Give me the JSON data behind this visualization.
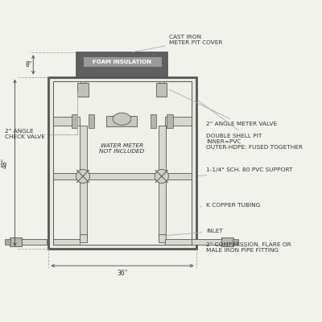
{
  "bg_color": "#f2f2ed",
  "line_color": "#aaaaaa",
  "dark_color": "#555555",
  "body_fill": "#e8e8e0",
  "inner_fill": "#f0f0ea",
  "pipe_fill": "#d8d8d0",
  "cover_fill": "#606060",
  "foam_fill": "#999999",
  "fitting_fill": "#c0c0b8",
  "text_color": "#333333",
  "labels": {
    "cast_iron": "CAST IRON\nMETER PIT COVER",
    "foam": "FOAM INSULATION",
    "check_valve": "2\" ANGLE\nCHECK VALVE",
    "meter_valve": "2\" ANGLE METER VALVE",
    "double_shell": "DOUBLE SHELL PIT\nINNER=PVC\nOUTER-HDPE: FUSED TOGETHER",
    "pvc_support": "1-1/4\" SCH. 80 PVC SUPPORT",
    "copper": "K COPPER TUBING",
    "water_meter": "WATER METER\nNOT INCLUDED",
    "inlet": "INLET",
    "compression": "2\" COMPRESSION, FLARE OR\nMALE IRON PIPE FITTING",
    "dim_8": "8\"",
    "dim_48": "48\"",
    "dim_36": "36\""
  }
}
